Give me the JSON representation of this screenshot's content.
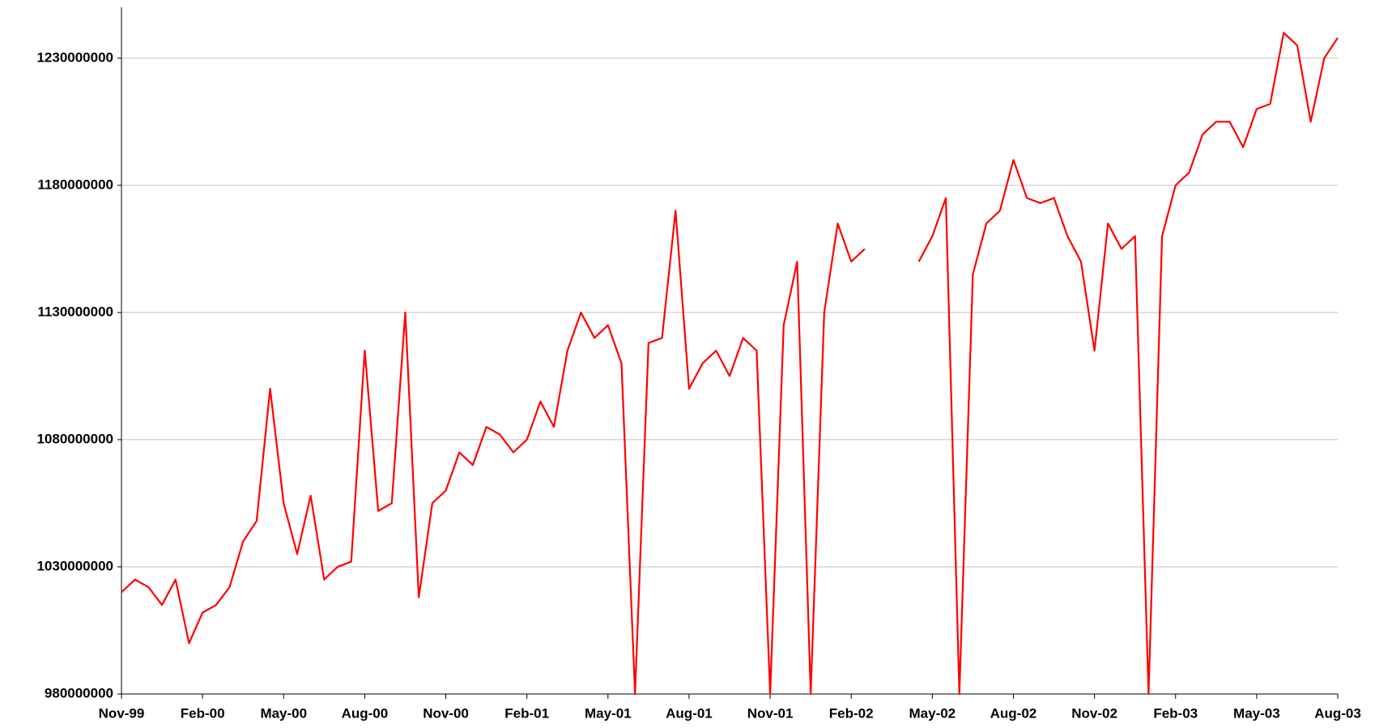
{
  "chart_data": {
    "type": "line",
    "color": "#ff0000",
    "grid": true,
    "categories": [
      "Nov-99",
      null,
      null,
      null,
      null,
      null,
      "Feb-00",
      null,
      null,
      null,
      null,
      null,
      "May-00",
      null,
      null,
      null,
      null,
      null,
      "Aug-00",
      null,
      null,
      null,
      null,
      null,
      "Nov-00",
      null,
      null,
      null,
      null,
      null,
      "Feb-01",
      null,
      null,
      null,
      null,
      null,
      "May-01",
      null,
      null,
      null,
      null,
      null,
      "Aug-01",
      null,
      null,
      null,
      null,
      null,
      "Nov-01",
      null,
      null,
      null,
      null,
      null,
      "Feb-02",
      null,
      null,
      null,
      null,
      null,
      "May-02",
      null,
      null,
      null,
      null,
      null,
      "Aug-02",
      null,
      null,
      null,
      null,
      null,
      "Nov-02",
      null,
      null,
      null,
      null,
      null,
      "Feb-03",
      null,
      null,
      null,
      null,
      null,
      "May-03",
      null,
      null,
      null,
      null,
      null,
      "Aug-03"
    ],
    "values": [
      1020000000,
      1025000000,
      1022000000,
      1015000000,
      1025000000,
      1000000000,
      1012000000,
      1015000000,
      1022000000,
      1040000000,
      1048000000,
      1100000000,
      1055000000,
      1035000000,
      1058000000,
      1025000000,
      1030000000,
      1032000000,
      1115000000,
      1052000000,
      1055000000,
      1130000000,
      1018000000,
      1055000000,
      1060000000,
      1075000000,
      1070000000,
      1085000000,
      1082000000,
      1075000000,
      1080000000,
      1095000000,
      1085000000,
      1115000000,
      1130000000,
      1120000000,
      1125000000,
      1110000000,
      980000000,
      1118000000,
      1120000000,
      1170000000,
      1100000000,
      1110000000,
      1115000000,
      1105000000,
      1120000000,
      1115000000,
      980000000,
      1125000000,
      1150000000,
      980000000,
      1130000000,
      1165000000,
      1150000000,
      1155000000,
      null,
      null,
      null,
      1150000000,
      1160000000,
      1175000000,
      980000000,
      1145000000,
      1165000000,
      1170000000,
      1190000000,
      1175000000,
      1173000000,
      1175000000,
      1160000000,
      1150000000,
      1115000000,
      1165000000,
      1155000000,
      1160000000,
      980000000,
      1160000000,
      1180000000,
      1185000000,
      1200000000,
      1205000000,
      1205000000,
      1195000000,
      1210000000,
      1212000000,
      1240000000,
      1235000000,
      1205000000,
      1230000000,
      1238000000
    ],
    "ylim": [
      980000000,
      1250000000
    ],
    "yticks": [
      980000000,
      1030000000,
      1080000000,
      1130000000,
      1180000000,
      1230000000
    ]
  }
}
